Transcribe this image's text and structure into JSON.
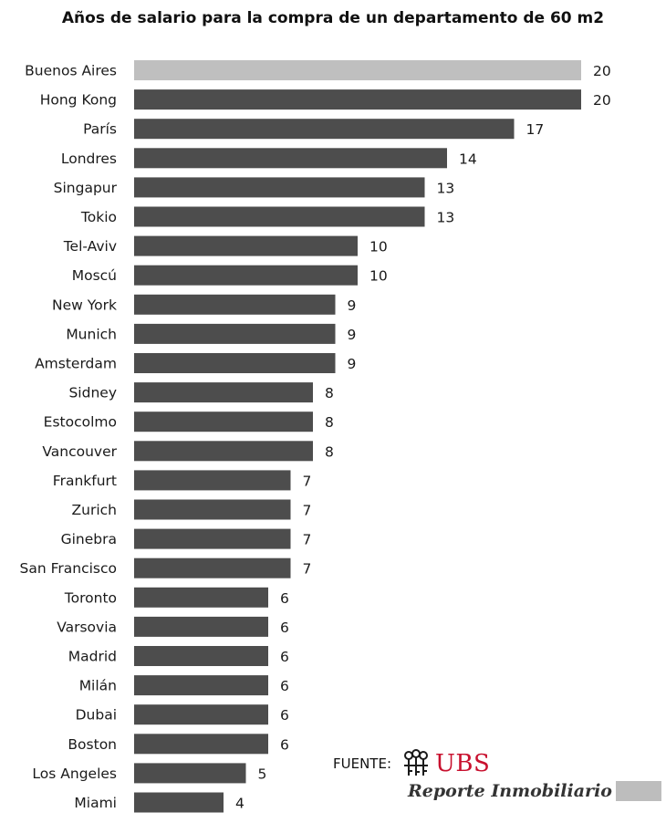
{
  "chart_data": {
    "type": "bar",
    "orientation": "horizontal",
    "title": "Años de salario para la compra de un departamento de 60 m2",
    "categories": [
      "Buenos Aires",
      "Hong Kong",
      "París",
      "Londres",
      "Singapur",
      "Tokio",
      "Tel-Aviv",
      "Moscú",
      "New York",
      "Munich",
      "Amsterdam",
      "Sidney",
      "Estocolmo",
      "Vancouver",
      "Frankfurt",
      "Zurich",
      "Ginebra",
      "San Francisco",
      "Toronto",
      "Varsovia",
      "Madrid",
      "Milán",
      "Dubai",
      "Boston",
      "Los Angeles",
      "Miami"
    ],
    "values": [
      20,
      20,
      17,
      14,
      13,
      13,
      10,
      10,
      9,
      9,
      9,
      8,
      8,
      8,
      7,
      7,
      7,
      7,
      6,
      6,
      6,
      6,
      6,
      6,
      5,
      4
    ],
    "data_labels": [
      "20",
      "20",
      "17",
      "14",
      "13",
      "13",
      "10",
      "10",
      "9",
      "9",
      "9",
      "8",
      "8",
      "8",
      "7",
      "7",
      "7",
      "7",
      "6",
      "6",
      "6",
      "6",
      "6",
      "6",
      "5",
      "4"
    ],
    "xlim": [
      0,
      20
    ],
    "grid": false,
    "legend": "none",
    "highlight_index": 0,
    "colors": {
      "bar": "#4d4d4d",
      "highlight": "#bfbfbf"
    }
  },
  "source": {
    "label": "FUENTE:",
    "logo_text": "UBS",
    "logo_color": "#c8102e",
    "logo_icon": "ubs-keys-icon"
  },
  "brand": {
    "text": "Reporte Inmobiliario",
    "swatch_color": "#bdbdbd"
  }
}
